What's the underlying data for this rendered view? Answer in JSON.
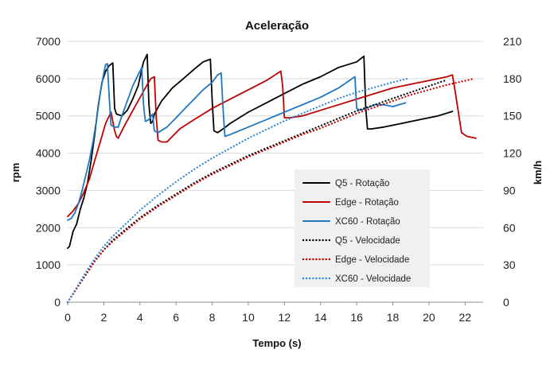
{
  "chart_data": {
    "type": "line",
    "title": "Aceleração",
    "xlabel": "Tempo (s)",
    "ylabel": "rpm",
    "y2label": "km/h",
    "xlim": [
      0,
      23
    ],
    "ylim": [
      0,
      7000
    ],
    "y2lim": [
      0,
      210
    ],
    "xticks": [
      0,
      2,
      4,
      6,
      8,
      10,
      12,
      14,
      16,
      18,
      20,
      22
    ],
    "yticks": [
      0,
      1000,
      2000,
      3000,
      4000,
      5000,
      6000,
      7000
    ],
    "y2ticks": [
      0,
      30,
      60,
      90,
      120,
      150,
      180,
      210
    ],
    "grid": "horizontal",
    "legend_position": "inside-right",
    "series": [
      {
        "name": "Q5 - Rotação",
        "axis": "left",
        "color": "#000000",
        "style": "solid",
        "x": [
          0,
          0.1,
          0.3,
          0.5,
          0.7,
          0.9,
          1.1,
          1.3,
          1.5,
          1.7,
          1.9,
          2.1,
          2.3,
          2.5,
          2.6,
          2.7,
          3.0,
          3.3,
          3.6,
          3.9,
          4.2,
          4.4,
          4.5,
          4.6,
          4.7,
          4.8,
          5.2,
          5.8,
          6.4,
          7.0,
          7.5,
          7.9,
          8.0,
          8.1,
          8.3,
          8.6,
          9.0,
          10,
          11,
          12,
          13,
          14,
          15,
          16,
          16.4,
          16.5,
          16.6,
          16.8,
          17.5,
          18.5,
          19.5,
          20.5,
          21.3
        ],
        "values": [
          1450,
          1500,
          1900,
          2100,
          2500,
          2800,
          3200,
          3800,
          4500,
          5300,
          5900,
          6200,
          6350,
          6420,
          5200,
          5050,
          5000,
          5150,
          5450,
          5800,
          6450,
          6650,
          5300,
          4800,
          4850,
          5050,
          5400,
          5750,
          6000,
          6250,
          6450,
          6520,
          5400,
          4600,
          4550,
          4650,
          4800,
          5100,
          5350,
          5600,
          5850,
          6050,
          6300,
          6450,
          6600,
          5200,
          4650,
          4650,
          4700,
          4800,
          4900,
          5000,
          5120
        ]
      },
      {
        "name": "Edge - Rotação",
        "axis": "left",
        "color": "#c00000",
        "style": "solid",
        "x": [
          0,
          0.3,
          0.6,
          0.9,
          1.2,
          1.5,
          1.8,
          2.1,
          2.4,
          2.6,
          2.7,
          2.8,
          3.1,
          3.5,
          3.9,
          4.3,
          4.6,
          4.8,
          4.9,
          5.0,
          5.2,
          5.5,
          5.8,
          6.2,
          7.0,
          8.0,
          9.0,
          10,
          11,
          11.8,
          11.9,
          12.0,
          12.3,
          13,
          14,
          15,
          16,
          17,
          18,
          19,
          20,
          21,
          21.3,
          21.5,
          21.8,
          22.1,
          22.6
        ],
        "values": [
          2300,
          2450,
          2650,
          2950,
          3300,
          3800,
          4300,
          4800,
          5100,
          4600,
          4450,
          4400,
          4700,
          5050,
          5400,
          5750,
          6000,
          6050,
          5000,
          4350,
          4300,
          4300,
          4450,
          4650,
          4900,
          5200,
          5450,
          5700,
          5950,
          6200,
          5800,
          4950,
          4950,
          5000,
          5150,
          5300,
          5450,
          5600,
          5750,
          5850,
          5950,
          6050,
          6100,
          5500,
          4550,
          4450,
          4400
        ]
      },
      {
        "name": "XC60 - Rotação",
        "axis": "left",
        "color": "#1f78c1",
        "style": "solid",
        "x": [
          0,
          0.2,
          0.4,
          0.6,
          0.8,
          1.0,
          1.2,
          1.4,
          1.6,
          1.8,
          2.0,
          2.1,
          2.2,
          2.3,
          2.4,
          2.6,
          2.8,
          3.0,
          3.3,
          3.6,
          3.9,
          4.1,
          4.2,
          4.3,
          4.5,
          4.7,
          4.8,
          5.0,
          5.5,
          6.0,
          6.5,
          7.0,
          7.5,
          8.0,
          8.3,
          8.5,
          8.6,
          8.7,
          9.0,
          10,
          11,
          12,
          13,
          14,
          15,
          15.9,
          16.0,
          16.2,
          16.5,
          17,
          17.5,
          18,
          18.7
        ],
        "values": [
          2200,
          2250,
          2400,
          2650,
          3000,
          3400,
          3800,
          4300,
          4900,
          5600,
          6150,
          6380,
          6400,
          5500,
          4750,
          4700,
          4700,
          5000,
          5400,
          5800,
          6100,
          6300,
          5300,
          4850,
          4900,
          5050,
          4600,
          4550,
          4700,
          4950,
          5200,
          5450,
          5700,
          5900,
          6100,
          6150,
          5200,
          4450,
          4500,
          4700,
          4900,
          5100,
          5300,
          5500,
          5750,
          6050,
          5200,
          5150,
          5200,
          5300,
          5300,
          5250,
          5350
        ]
      },
      {
        "name": "Q5 - Velocidade",
        "axis": "right",
        "color": "#000000",
        "style": "dotted",
        "x": [
          0,
          0.5,
          1,
          1.5,
          2,
          2.5,
          3,
          4,
          5,
          6,
          7,
          8,
          9,
          10,
          11,
          12,
          13,
          14,
          15,
          16,
          17,
          18,
          19,
          20,
          21
        ],
        "values": [
          0,
          11,
          22,
          33,
          42,
          50,
          56,
          68,
          78,
          87,
          96,
          104,
          111,
          118,
          124,
          130,
          136,
          142,
          148,
          154,
          159,
          164,
          169,
          174,
          179
        ]
      },
      {
        "name": "Edge - Velocidade",
        "axis": "right",
        "color": "#c00000",
        "style": "dotted",
        "x": [
          0,
          0.5,
          1,
          1.5,
          2,
          2.5,
          3,
          4,
          5,
          6,
          7,
          8,
          9,
          10,
          11,
          12,
          13,
          14,
          15,
          16,
          17,
          18,
          19,
          20,
          21,
          22.5
        ],
        "values": [
          0,
          11,
          22,
          33,
          42,
          49,
          55,
          67,
          77,
          86,
          95,
          103,
          110,
          117,
          123,
          129,
          135,
          140,
          146,
          152,
          157,
          162,
          167,
          171,
          175,
          180
        ]
      },
      {
        "name": "XC60 - Velocidade",
        "axis": "right",
        "color": "#2e86d9",
        "style": "dotted",
        "x": [
          0,
          0.5,
          1,
          1.5,
          2,
          2.5,
          3,
          4,
          5,
          6,
          7,
          8,
          9,
          10,
          11,
          12,
          13,
          14,
          15,
          16,
          17,
          18,
          18.8
        ],
        "values": [
          0,
          12,
          24,
          35,
          45,
          53,
          60,
          74,
          86,
          97,
          107,
          116,
          124,
          132,
          139,
          146,
          152,
          158,
          164,
          169,
          173,
          177,
          180
        ]
      }
    ]
  }
}
